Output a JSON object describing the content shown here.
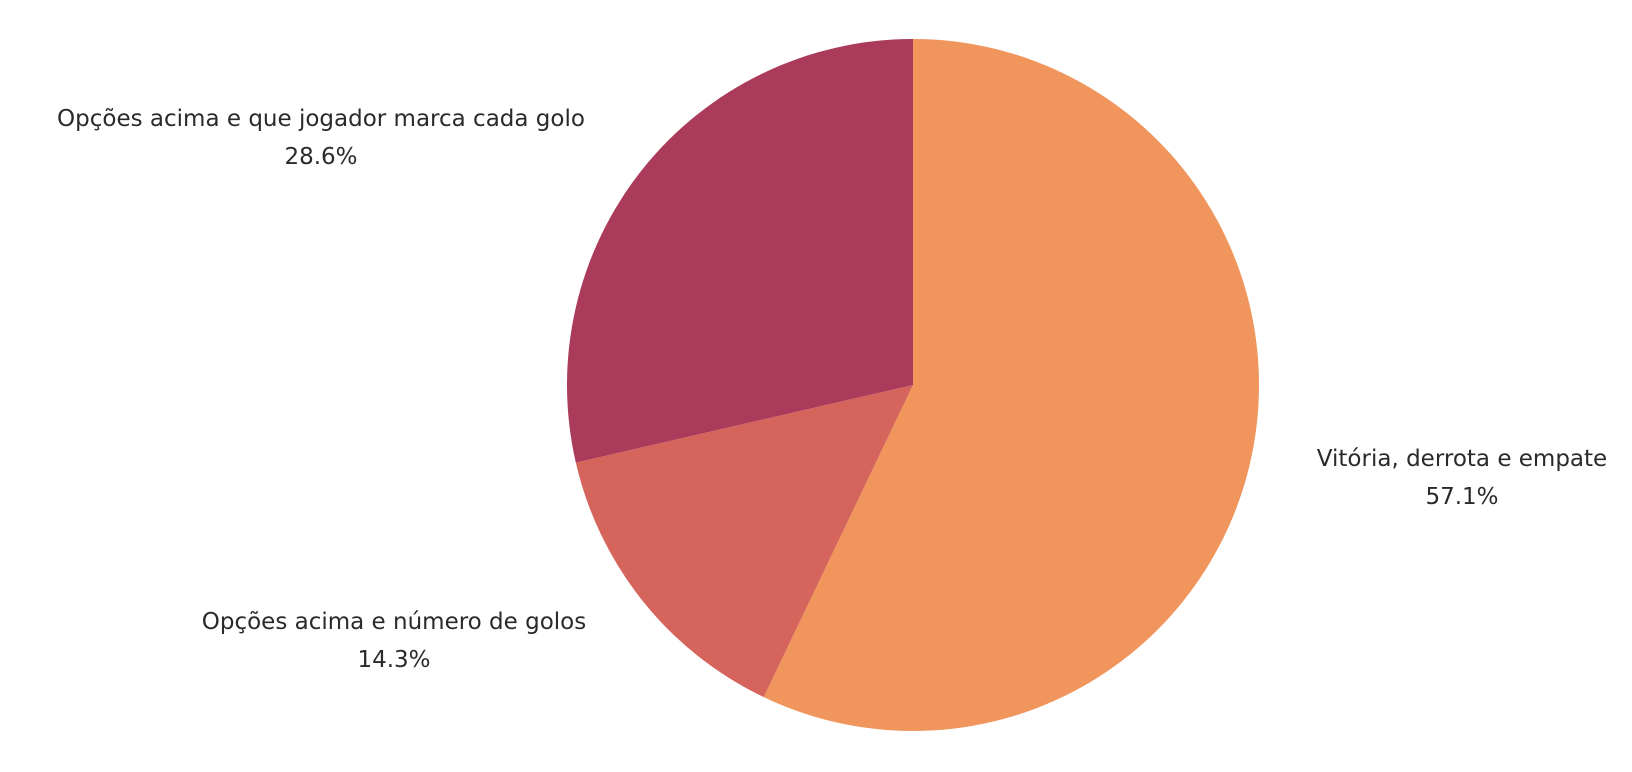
{
  "chart_data": {
    "type": "pie",
    "title": "",
    "slices": [
      {
        "label": "Vitória, derrota e empate",
        "value": 57.1,
        "value_label": "57.1%",
        "color": "#F0965C"
      },
      {
        "label": "Opções acima e número de golos",
        "value": 14.3,
        "value_label": "14.3%",
        "color": "#D5655C"
      },
      {
        "label": "Opções acima e que jogador marca cada golo",
        "value": 28.6,
        "value_label": "28.6%",
        "color": "#AB3B5B"
      }
    ],
    "start_angle": "12 o'clock",
    "direction": "clockwise",
    "legend": "none"
  }
}
